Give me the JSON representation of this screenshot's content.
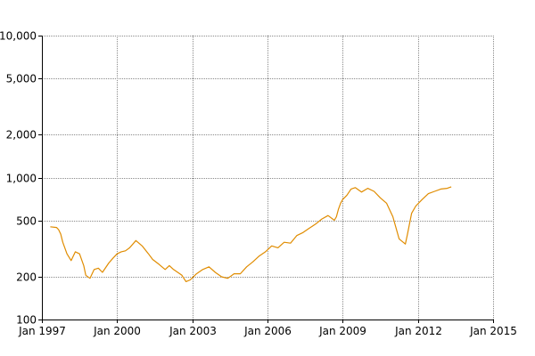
{
  "chart_data": {
    "type": "line",
    "title": "",
    "xlabel": "",
    "ylabel": "",
    "y_scale": "log",
    "ylim": [
      100,
      10000
    ],
    "xlim": [
      "1997-01",
      "2015-01"
    ],
    "grid": true,
    "legend": "none",
    "line_color": "#e08c00",
    "x_ticks": [
      {
        "date": "1997-01",
        "label": "Jan 1997"
      },
      {
        "date": "2000-01",
        "label": "Jan 2000"
      },
      {
        "date": "2003-01",
        "label": "Jan 2003"
      },
      {
        "date": "2006-01",
        "label": "Jan 2006"
      },
      {
        "date": "2009-01",
        "label": "Jan 2009"
      },
      {
        "date": "2012-01",
        "label": "Jan 2012"
      },
      {
        "date": "2015-01",
        "label": "Jan 2015"
      }
    ],
    "y_ticks": [
      {
        "value": 100,
        "label": "100"
      },
      {
        "value": 200,
        "label": "200"
      },
      {
        "value": 500,
        "label": "500"
      },
      {
        "value": 1000,
        "label": "1,000"
      },
      {
        "value": 2000,
        "label": "2,000"
      },
      {
        "value": 5000,
        "label": "5,000"
      },
      {
        "value": 10000,
        "label": "10,000"
      }
    ],
    "x": [
      "1997-05",
      "1997-08",
      "1997-09",
      "1997-10",
      "1997-11",
      "1998-01",
      "1998-03",
      "1998-05",
      "1998-07",
      "1998-09",
      "1998-10",
      "1998-12",
      "1999-02",
      "1999-04",
      "1999-06",
      "1999-09",
      "1999-11",
      "2000-01",
      "2000-03",
      "2000-05",
      "2000-07",
      "2000-10",
      "2001-01",
      "2001-04",
      "2001-06",
      "2001-09",
      "2001-12",
      "2002-02",
      "2002-04",
      "2002-06",
      "2002-08",
      "2002-10",
      "2002-12",
      "2003-03",
      "2003-06",
      "2003-09",
      "2003-12",
      "2004-03",
      "2004-06",
      "2004-09",
      "2004-12",
      "2005-03",
      "2005-06",
      "2005-09",
      "2005-12",
      "2006-03",
      "2006-06",
      "2006-09",
      "2006-12",
      "2007-03",
      "2007-06",
      "2007-09",
      "2007-12",
      "2008-03",
      "2008-06",
      "2008-09",
      "2008-10",
      "2008-11",
      "2008-12",
      "2009-01",
      "2009-03",
      "2009-05",
      "2009-07",
      "2009-10",
      "2010-01",
      "2010-04",
      "2010-07",
      "2010-10",
      "2011-01",
      "2011-04",
      "2011-07",
      "2011-08",
      "2011-10",
      "2011-12",
      "2012-03",
      "2012-06",
      "2012-09",
      "2012-12",
      "2013-03",
      "2013-05"
    ],
    "series": [
      {
        "color": "#e08c00",
        "values": [
          450,
          445,
          430,
          400,
          350,
          290,
          260,
          300,
          290,
          240,
          205,
          195,
          225,
          230,
          215,
          250,
          270,
          290,
          300,
          305,
          320,
          360,
          330,
          290,
          265,
          245,
          225,
          240,
          225,
          215,
          205,
          185,
          190,
          210,
          225,
          235,
          215,
          200,
          195,
          210,
          210,
          235,
          255,
          280,
          300,
          330,
          320,
          350,
          345,
          390,
          410,
          440,
          470,
          510,
          540,
          500,
          530,
          600,
          660,
          700,
          750,
          830,
          850,
          790,
          840,
          800,
          720,
          660,
          530,
          370,
          340,
          400,
          560,
          630,
          700,
          770,
          800,
          830,
          840,
          860
        ]
      }
    ]
  }
}
